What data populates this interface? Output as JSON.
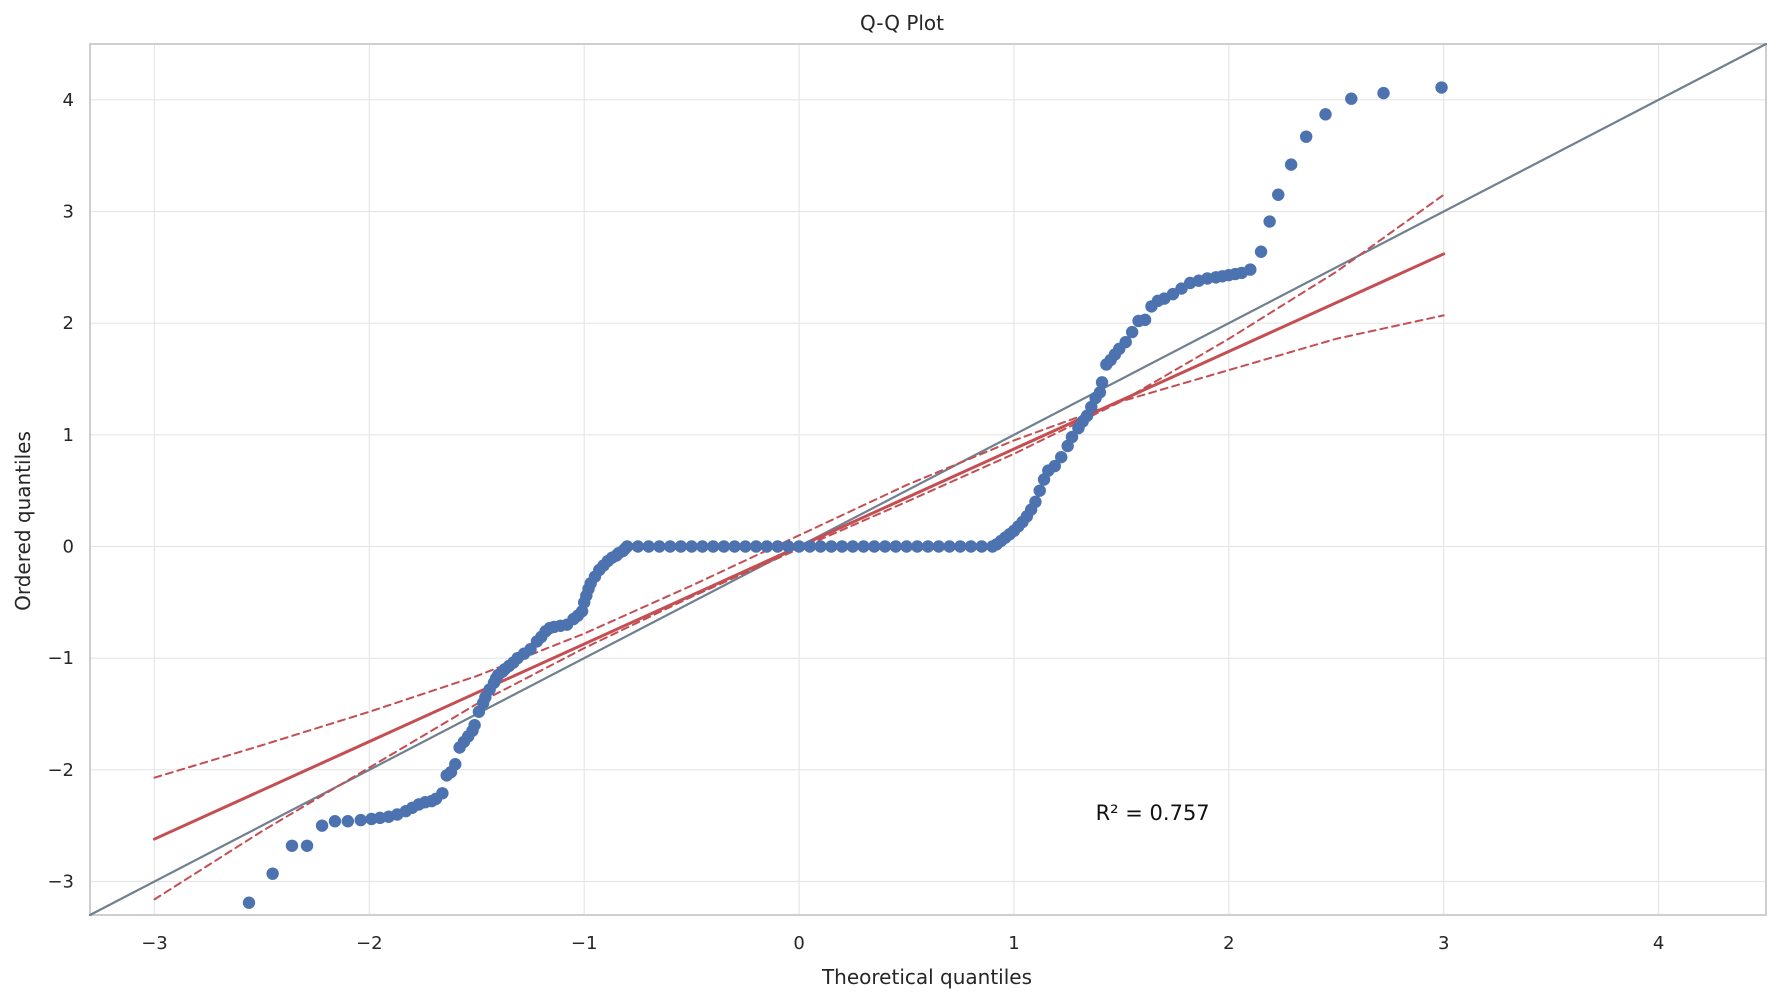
{
  "chart_data": {
    "type": "scatter",
    "title": "Q-Q Plot",
    "xlabel": "Theoretical quantiles",
    "ylabel": "Ordered quantiles",
    "xlim": [
      -3.3,
      4.5
    ],
    "ylim": [
      -3.3,
      4.5
    ],
    "xticks": [
      -3,
      -2,
      -1,
      0,
      1,
      2,
      3,
      4
    ],
    "yticks": [
      -3,
      -2,
      -1,
      0,
      1,
      2,
      3,
      4
    ],
    "xtick_labels": [
      "−3",
      "−2",
      "−1",
      "0",
      "1",
      "2",
      "3",
      "4"
    ],
    "ytick_labels": [
      "−3",
      "−2",
      "−1",
      "0",
      "1",
      "2",
      "3",
      "4"
    ],
    "grid": true,
    "annotation": {
      "text": "R² = 0.757",
      "x": 1.38,
      "y": -2.45
    },
    "series": [
      {
        "kind": "points",
        "color": "#4c72b0",
        "points": [
          [
            -2.56,
            -3.19
          ],
          [
            -2.45,
            -2.93
          ],
          [
            -2.36,
            -2.68
          ],
          [
            -2.29,
            -2.68
          ],
          [
            -2.22,
            -2.5
          ],
          [
            -2.16,
            -2.46
          ],
          [
            -2.1,
            -2.46
          ],
          [
            -2.04,
            -2.45
          ],
          [
            -1.99,
            -2.44
          ],
          [
            -1.95,
            -2.43
          ],
          [
            -1.91,
            -2.42
          ],
          [
            -1.87,
            -2.4
          ],
          [
            -1.83,
            -2.37
          ],
          [
            -1.8,
            -2.34
          ],
          [
            -1.77,
            -2.31
          ],
          [
            -1.74,
            -2.29
          ],
          [
            -1.71,
            -2.28
          ],
          [
            -1.69,
            -2.26
          ],
          [
            -1.66,
            -2.21
          ],
          [
            -1.64,
            -2.05
          ],
          [
            -1.62,
            -2.02
          ],
          [
            -1.6,
            -1.95
          ],
          [
            -1.58,
            -1.8
          ],
          [
            -1.56,
            -1.75
          ],
          [
            -1.54,
            -1.7
          ],
          [
            -1.52,
            -1.65
          ],
          [
            -1.51,
            -1.6
          ],
          [
            -1.49,
            -1.48
          ],
          [
            -1.47,
            -1.4
          ],
          [
            -1.46,
            -1.35
          ],
          [
            -1.44,
            -1.28
          ],
          [
            -1.42,
            -1.22
          ],
          [
            -1.41,
            -1.18
          ],
          [
            -1.4,
            -1.15
          ],
          [
            -1.38,
            -1.12
          ],
          [
            -1.37,
            -1.1
          ],
          [
            -1.35,
            -1.07
          ],
          [
            -1.33,
            -1.04
          ],
          [
            -1.31,
            -1.0
          ],
          [
            -1.28,
            -0.96
          ],
          [
            -1.25,
            -0.92
          ],
          [
            -1.22,
            -0.85
          ],
          [
            -1.2,
            -0.81
          ],
          [
            -1.18,
            -0.76
          ],
          [
            -1.16,
            -0.73
          ],
          [
            -1.14,
            -0.72
          ],
          [
            -1.11,
            -0.71
          ],
          [
            -1.08,
            -0.7
          ],
          [
            -1.05,
            -0.65
          ],
          [
            -1.03,
            -0.62
          ],
          [
            -1.01,
            -0.58
          ],
          [
            -1.0,
            -0.5
          ],
          [
            -0.99,
            -0.44
          ],
          [
            -0.98,
            -0.38
          ],
          [
            -0.97,
            -0.33
          ],
          [
            -0.95,
            -0.27
          ],
          [
            -0.93,
            -0.21
          ],
          [
            -0.91,
            -0.17
          ],
          [
            -0.89,
            -0.13
          ],
          [
            -0.87,
            -0.1
          ],
          [
            -0.85,
            -0.08
          ],
          [
            -0.84,
            -0.06
          ],
          [
            -0.82,
            -0.04
          ],
          [
            -0.81,
            -0.02
          ],
          [
            -0.8,
            0.0
          ],
          [
            -0.75,
            0.0
          ],
          [
            -0.7,
            0.0
          ],
          [
            -0.65,
            0.0
          ],
          [
            -0.6,
            0.0
          ],
          [
            -0.55,
            0.0
          ],
          [
            -0.5,
            0.0
          ],
          [
            -0.45,
            0.0
          ],
          [
            -0.4,
            0.0
          ],
          [
            -0.35,
            0.0
          ],
          [
            -0.3,
            0.0
          ],
          [
            -0.25,
            0.0
          ],
          [
            -0.2,
            0.0
          ],
          [
            -0.15,
            0.0
          ],
          [
            -0.1,
            0.0
          ],
          [
            -0.05,
            0.0
          ],
          [
            0.0,
            0.0
          ],
          [
            0.05,
            0.0
          ],
          [
            0.1,
            0.0
          ],
          [
            0.15,
            0.0
          ],
          [
            0.2,
            0.0
          ],
          [
            0.25,
            0.0
          ],
          [
            0.3,
            0.0
          ],
          [
            0.35,
            0.0
          ],
          [
            0.4,
            0.0
          ],
          [
            0.45,
            0.0
          ],
          [
            0.5,
            0.0
          ],
          [
            0.55,
            0.0
          ],
          [
            0.6,
            0.0
          ],
          [
            0.65,
            0.0
          ],
          [
            0.7,
            0.0
          ],
          [
            0.75,
            0.0
          ],
          [
            0.8,
            0.0
          ],
          [
            0.85,
            0.0
          ],
          [
            0.9,
            0.0
          ],
          [
            0.92,
            0.02
          ],
          [
            0.94,
            0.05
          ],
          [
            0.96,
            0.08
          ],
          [
            0.98,
            0.11
          ],
          [
            1.0,
            0.14
          ],
          [
            1.02,
            0.18
          ],
          [
            1.04,
            0.22
          ],
          [
            1.06,
            0.27
          ],
          [
            1.08,
            0.33
          ],
          [
            1.1,
            0.4
          ],
          [
            1.12,
            0.5
          ],
          [
            1.14,
            0.6
          ],
          [
            1.16,
            0.68
          ],
          [
            1.19,
            0.72
          ],
          [
            1.22,
            0.8
          ],
          [
            1.25,
            0.9
          ],
          [
            1.27,
            0.98
          ],
          [
            1.3,
            1.06
          ],
          [
            1.32,
            1.12
          ],
          [
            1.34,
            1.17
          ],
          [
            1.36,
            1.25
          ],
          [
            1.38,
            1.33
          ],
          [
            1.4,
            1.38
          ],
          [
            1.41,
            1.47
          ],
          [
            1.43,
            1.63
          ],
          [
            1.45,
            1.67
          ],
          [
            1.47,
            1.72
          ],
          [
            1.49,
            1.77
          ],
          [
            1.52,
            1.83
          ],
          [
            1.55,
            1.92
          ],
          [
            1.58,
            2.02
          ],
          [
            1.61,
            2.03
          ],
          [
            1.64,
            2.15
          ],
          [
            1.67,
            2.2
          ],
          [
            1.7,
            2.22
          ],
          [
            1.74,
            2.26
          ],
          [
            1.78,
            2.31
          ],
          [
            1.82,
            2.36
          ],
          [
            1.86,
            2.38
          ],
          [
            1.9,
            2.4
          ],
          [
            1.94,
            2.41
          ],
          [
            1.97,
            2.42
          ],
          [
            2.0,
            2.43
          ],
          [
            2.03,
            2.44
          ],
          [
            2.06,
            2.45
          ],
          [
            2.1,
            2.48
          ],
          [
            2.15,
            2.64
          ],
          [
            2.19,
            2.91
          ],
          [
            2.23,
            3.15
          ],
          [
            2.29,
            3.42
          ],
          [
            2.36,
            3.67
          ],
          [
            2.45,
            3.87
          ],
          [
            2.57,
            4.01
          ],
          [
            2.72,
            4.06
          ],
          [
            2.99,
            4.11
          ]
        ]
      },
      {
        "kind": "line",
        "color": "#708090",
        "points": [
          [
            -3.3,
            -3.3
          ],
          [
            4.5,
            4.5
          ]
        ],
        "dash": false,
        "width": 2.2
      },
      {
        "kind": "line",
        "color": "#c44e52",
        "points": [
          [
            -3.0,
            -2.62
          ],
          [
            3.0,
            2.62
          ]
        ],
        "dash": false,
        "width": 3
      },
      {
        "kind": "line",
        "color": "#c44e52",
        "points": [
          [
            -3.0,
            -2.07
          ],
          [
            -2.5,
            -1.78
          ],
          [
            -2.0,
            -1.48
          ],
          [
            -1.5,
            -1.16
          ],
          [
            -1.0,
            -0.78
          ],
          [
            -0.5,
            -0.35
          ],
          [
            0.0,
            0.1
          ],
          [
            0.5,
            0.55
          ],
          [
            1.0,
            0.95
          ],
          [
            1.5,
            1.3
          ],
          [
            2.0,
            1.58
          ],
          [
            2.5,
            1.86
          ],
          [
            3.0,
            2.07
          ]
        ],
        "dash": true,
        "width": 2
      },
      {
        "kind": "line",
        "color": "#c44e52",
        "points": [
          [
            -3.0,
            -3.16
          ],
          [
            -2.5,
            -2.55
          ],
          [
            -2.0,
            -1.98
          ],
          [
            -1.5,
            -1.41
          ],
          [
            -1.0,
            -0.91
          ],
          [
            -0.5,
            -0.45
          ],
          [
            0.0,
            -0.02
          ],
          [
            0.5,
            0.4
          ],
          [
            1.0,
            0.83
          ],
          [
            1.5,
            1.3
          ],
          [
            2.0,
            1.86
          ],
          [
            2.5,
            2.46
          ],
          [
            3.0,
            3.15
          ]
        ],
        "dash": true,
        "width": 2
      }
    ]
  }
}
